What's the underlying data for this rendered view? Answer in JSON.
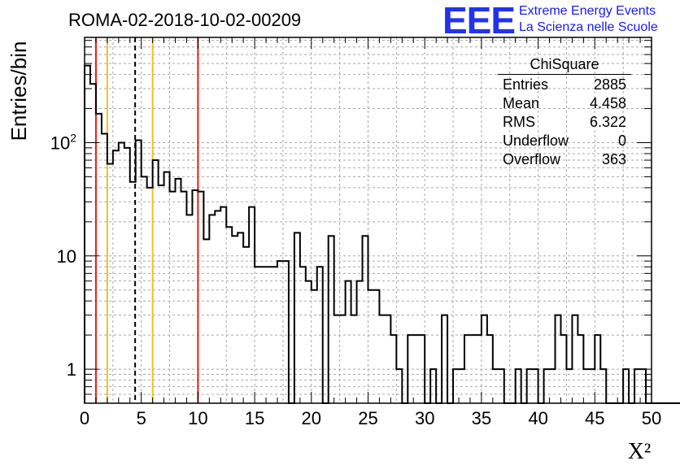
{
  "chart_data": {
    "type": "histogram",
    "title": "ROMA-02-2018-10-02-00209",
    "xlabel": "X²",
    "ylabel": "Entries/bin",
    "xlim": [
      0,
      50
    ],
    "ylim": [
      0.5,
      850
    ],
    "yscale": "log",
    "grid": true,
    "bin_width": 0.5,
    "x_ticks": [
      0,
      5,
      10,
      15,
      20,
      25,
      30,
      35,
      40,
      45,
      50
    ],
    "x_tick_labels": [
      "0",
      "5",
      "10",
      "15",
      "20",
      "25",
      "30",
      "35",
      "40",
      "45",
      "50"
    ],
    "y_ticks": [
      1,
      10,
      100
    ],
    "y_tick_labels": [
      "1",
      "10",
      "10²"
    ],
    "values": [
      480,
      330,
      180,
      120,
      65,
      85,
      100,
      90,
      45,
      105,
      50,
      40,
      70,
      42,
      55,
      37,
      48,
      37,
      23,
      38,
      37,
      14,
      23,
      25,
      27,
      18,
      15,
      16,
      12,
      27,
      8,
      8,
      8,
      8,
      9,
      9,
      0,
      16,
      8,
      6,
      5,
      8,
      0,
      15,
      3,
      3,
      6,
      3,
      6,
      15,
      5,
      5,
      3,
      3,
      2,
      1,
      0,
      2,
      2,
      2,
      0,
      1,
      0,
      3,
      0,
      1,
      1,
      2,
      2,
      2,
      3,
      2,
      1,
      1,
      0,
      0,
      1,
      0,
      1,
      1,
      0,
      1,
      1,
      3,
      2,
      1,
      3,
      2,
      1,
      1,
      2,
      1,
      0,
      0,
      0,
      1,
      0,
      1,
      1,
      0,
      0,
      0,
      0,
      0,
      0,
      0,
      0,
      0,
      0,
      0,
      0,
      0,
      0,
      0,
      0,
      0,
      0,
      0,
      0,
      0,
      0,
      0,
      0,
      0,
      0,
      0,
      0,
      0,
      0,
      0,
      0,
      0,
      0,
      0,
      0,
      0,
      0,
      0,
      0,
      0,
      0,
      0,
      0,
      0,
      0,
      0,
      0,
      0,
      0,
      0,
      0,
      0,
      0,
      0,
      0,
      0,
      0,
      0,
      0,
      0
    ],
    "vlines": [
      {
        "x": 1.0,
        "color": "#e0201a",
        "style": "solid"
      },
      {
        "x": 2.0,
        "color": "#f0c020",
        "style": "solid"
      },
      {
        "x": 4.458,
        "color": "#000000",
        "style": "dashed"
      },
      {
        "x": 6.0,
        "color": "#f0c020",
        "style": "solid"
      },
      {
        "x": 10.0,
        "color": "#e0201a",
        "style": "solid"
      }
    ],
    "stats": {
      "header": "ChiSquare",
      "rows": [
        {
          "label": "Entries",
          "value": "2885"
        },
        {
          "label": "Mean",
          "value": "4.458"
        },
        {
          "label": "RMS",
          "value": "6.322"
        },
        {
          "label": "Underflow",
          "value": "0"
        },
        {
          "label": "Overflow",
          "value": "363"
        }
      ]
    }
  },
  "logo": {
    "mark": "EEE",
    "line1": "Extreme Energy Events",
    "line2": "La Scienza nelle Scuole"
  }
}
